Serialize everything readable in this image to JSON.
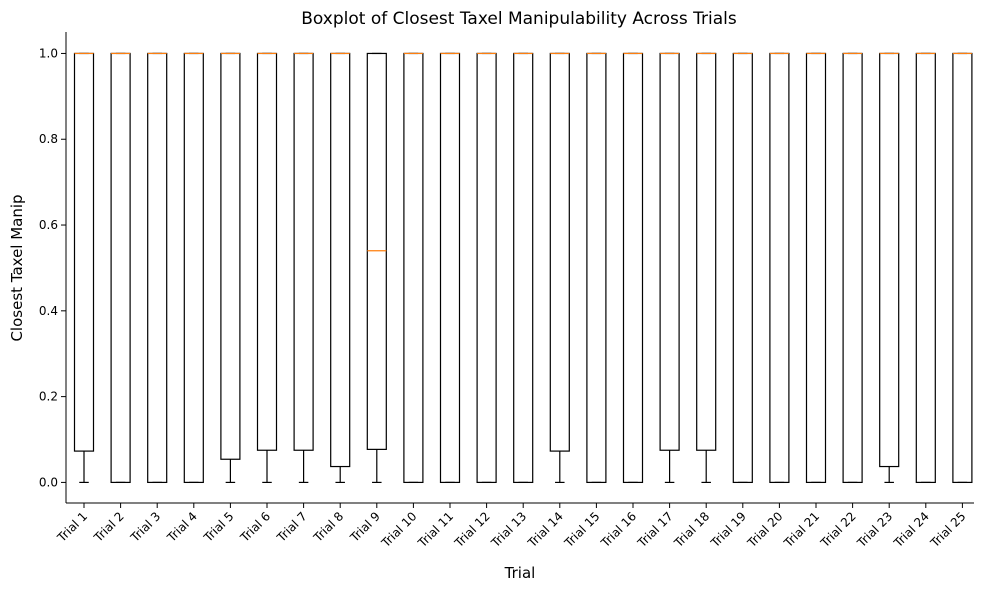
{
  "colors": {
    "box_edge": "#000000",
    "median": "#ff7f0e",
    "axis": "#000000",
    "background": "#ffffff"
  },
  "chart_data": {
    "type": "boxplot",
    "title": "Boxplot of Closest Taxel Manipulability Across Trials",
    "xlabel": "Trial",
    "ylabel": "Closest Taxel Manip",
    "ylim": [
      -0.048,
      1.05
    ],
    "yticks": [
      0.0,
      0.2,
      0.4,
      0.6,
      0.8,
      1.0
    ],
    "ytick_labels": [
      "0.0",
      "0.2",
      "0.4",
      "0.6",
      "0.8",
      "1.0"
    ],
    "grid": false,
    "categories": [
      "Trial 1",
      "Trial 2",
      "Trial 3",
      "Trial 4",
      "Trial 5",
      "Trial 6",
      "Trial 7",
      "Trial 8",
      "Trial 9",
      "Trial 10",
      "Trial 11",
      "Trial 12",
      "Trial 13",
      "Trial 14",
      "Trial 15",
      "Trial 16",
      "Trial 17",
      "Trial 18",
      "Trial 19",
      "Trial 20",
      "Trial 21",
      "Trial 22",
      "Trial 23",
      "Trial 24",
      "Trial 25"
    ],
    "boxes": [
      {
        "whislo": 0.0,
        "q1": 0.073,
        "median": 1.0,
        "q3": 1.0,
        "whishi": 1.0
      },
      {
        "whislo": 0.0,
        "q1": 0.0,
        "median": 1.0,
        "q3": 1.0,
        "whishi": 1.0
      },
      {
        "whislo": 0.0,
        "q1": 0.0,
        "median": 1.0,
        "q3": 1.0,
        "whishi": 1.0
      },
      {
        "whislo": 0.0,
        "q1": 0.0,
        "median": 1.0,
        "q3": 1.0,
        "whishi": 1.0
      },
      {
        "whislo": 0.0,
        "q1": 0.054,
        "median": 1.0,
        "q3": 1.0,
        "whishi": 1.0
      },
      {
        "whislo": 0.0,
        "q1": 0.075,
        "median": 1.0,
        "q3": 1.0,
        "whishi": 1.0
      },
      {
        "whislo": 0.0,
        "q1": 0.075,
        "median": 1.0,
        "q3": 1.0,
        "whishi": 1.0
      },
      {
        "whislo": 0.0,
        "q1": 0.037,
        "median": 1.0,
        "q3": 1.0,
        "whishi": 1.0
      },
      {
        "whislo": 0.0,
        "q1": 0.077,
        "median": 0.54,
        "q3": 1.0,
        "whishi": 1.0
      },
      {
        "whislo": 0.0,
        "q1": 0.0,
        "median": 1.0,
        "q3": 1.0,
        "whishi": 1.0
      },
      {
        "whislo": 0.0,
        "q1": 0.0,
        "median": 1.0,
        "q3": 1.0,
        "whishi": 1.0
      },
      {
        "whislo": 0.0,
        "q1": 0.0,
        "median": 1.0,
        "q3": 1.0,
        "whishi": 1.0
      },
      {
        "whislo": 0.0,
        "q1": 0.0,
        "median": 1.0,
        "q3": 1.0,
        "whishi": 1.0
      },
      {
        "whislo": 0.0,
        "q1": 0.073,
        "median": 1.0,
        "q3": 1.0,
        "whishi": 1.0
      },
      {
        "whislo": 0.0,
        "q1": 0.0,
        "median": 1.0,
        "q3": 1.0,
        "whishi": 1.0
      },
      {
        "whislo": 0.0,
        "q1": 0.0,
        "median": 1.0,
        "q3": 1.0,
        "whishi": 1.0
      },
      {
        "whislo": 0.0,
        "q1": 0.075,
        "median": 1.0,
        "q3": 1.0,
        "whishi": 1.0
      },
      {
        "whislo": 0.0,
        "q1": 0.075,
        "median": 1.0,
        "q3": 1.0,
        "whishi": 1.0
      },
      {
        "whislo": 0.0,
        "q1": 0.0,
        "median": 1.0,
        "q3": 1.0,
        "whishi": 1.0
      },
      {
        "whislo": 0.0,
        "q1": 0.0,
        "median": 1.0,
        "q3": 1.0,
        "whishi": 1.0
      },
      {
        "whislo": 0.0,
        "q1": 0.0,
        "median": 1.0,
        "q3": 1.0,
        "whishi": 1.0
      },
      {
        "whislo": 0.0,
        "q1": 0.0,
        "median": 1.0,
        "q3": 1.0,
        "whishi": 1.0
      },
      {
        "whislo": 0.0,
        "q1": 0.037,
        "median": 1.0,
        "q3": 1.0,
        "whishi": 1.0
      },
      {
        "whislo": 0.0,
        "q1": 0.0,
        "median": 1.0,
        "q3": 1.0,
        "whishi": 1.0
      },
      {
        "whislo": 0.0,
        "q1": 0.0,
        "median": 1.0,
        "q3": 1.0,
        "whishi": 1.0
      }
    ]
  }
}
